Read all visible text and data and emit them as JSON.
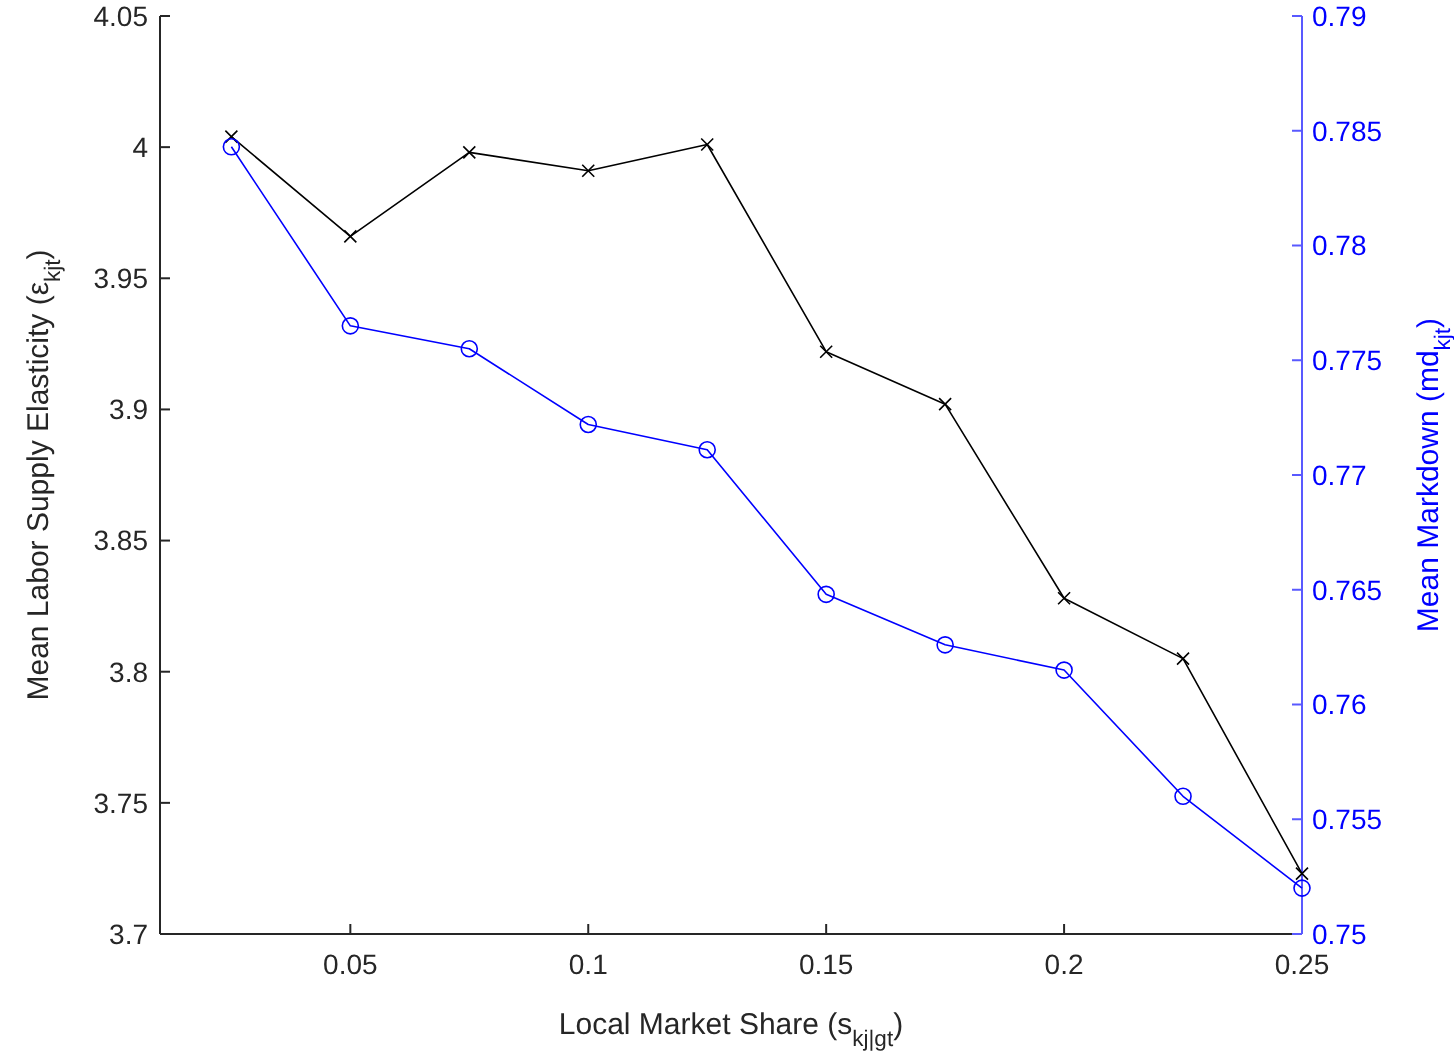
{
  "chart_data": {
    "type": "line",
    "xlabel": "Local Market Share (s$_{kj|gt}$)",
    "ylabel": "Mean Labor Supply Elasticity (ε$_{kjt}$)",
    "y2label": "Mean Markdown (md$_{kjt}$)",
    "x": [
      0.025,
      0.05,
      0.075,
      0.1,
      0.125,
      0.15,
      0.175,
      0.2,
      0.225,
      0.25
    ],
    "xlim": [
      0.01,
      0.25
    ],
    "xticks": [
      0.05,
      0.1,
      0.15,
      0.2,
      0.25
    ],
    "ylim": [
      3.7,
      4.05
    ],
    "yticks": [
      3.7,
      3.75,
      3.8,
      3.85,
      3.9,
      3.95,
      4,
      4.05
    ],
    "y2lim": [
      0.75,
      0.79
    ],
    "y2ticks": [
      0.75,
      0.755,
      0.76,
      0.765,
      0.77,
      0.775,
      0.78,
      0.785,
      0.79
    ],
    "grid": false,
    "line_style": "solid",
    "series": [
      {
        "color": "#000000",
        "marker": "cross",
        "values": [
          4.004,
          3.966,
          3.998,
          3.991,
          4.001,
          3.922,
          3.902,
          3.828,
          3.805,
          3.723
        ]
      },
      {
        "color": "#0000ff",
        "marker": "circle",
        "axis": "y2",
        "values": [
          0.7843,
          0.7765,
          0.7755,
          0.7722,
          0.7711,
          0.7648,
          0.7626,
          0.7615,
          0.756,
          0.752
        ]
      }
    ]
  }
}
